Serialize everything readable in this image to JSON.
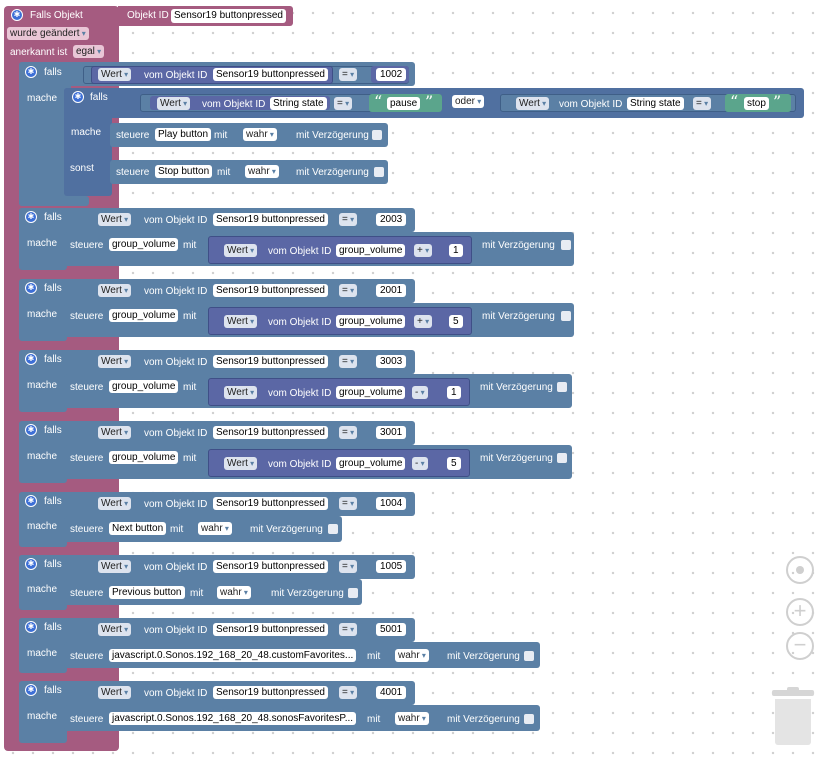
{
  "trigger": {
    "title": "Falls Objekt",
    "objid_label": "Objekt ID",
    "objid_value": "Sensor19 buttonpressed",
    "changed": "wurde geändert",
    "ack_label": "anerkannt ist",
    "ack_value": "egal"
  },
  "kw": {
    "falls": "falls",
    "mache": "mache",
    "sonst": "sonst",
    "wert": "Wert",
    "vom_objekt": "vom Objekt ID",
    "eq": "=",
    "oder": "oder",
    "steuere": "steuere",
    "mit": "mit",
    "wahr": "wahr",
    "verz": "mit Verzögerung",
    "plus": "+",
    "minus": "-"
  },
  "sensor": "Sensor19 buttonpressed",
  "string_state": "String state",
  "pause": "pause",
  "stop": "stop",
  "play_button": "Play button",
  "stop_button": "Stop button",
  "group_volume": "group_volume",
  "next_button": "Next button",
  "prev_button": "Previous button",
  "custom_fav": "javascript.0.Sonos.192_168_20_48.customFavorites...",
  "sonos_fav": "javascript.0.Sonos.192_168_20_48.sonosFavoritesP...",
  "values": {
    "b1": "1002",
    "b2": "2003",
    "b3": "2001",
    "b4": "3003",
    "b5": "3001",
    "b6": "1004",
    "b7": "1005",
    "b8": "5001",
    "b9": "4001",
    "one": "1",
    "five": "5"
  },
  "colors": {
    "trigger": "#a55b80",
    "logic": "#5b80a5",
    "value": "#5b67a5",
    "text": "#5ba58c"
  },
  "icons": [
    "gear-icon",
    "target-icon",
    "zoom-in-icon",
    "zoom-out-icon",
    "trash-icon"
  ]
}
